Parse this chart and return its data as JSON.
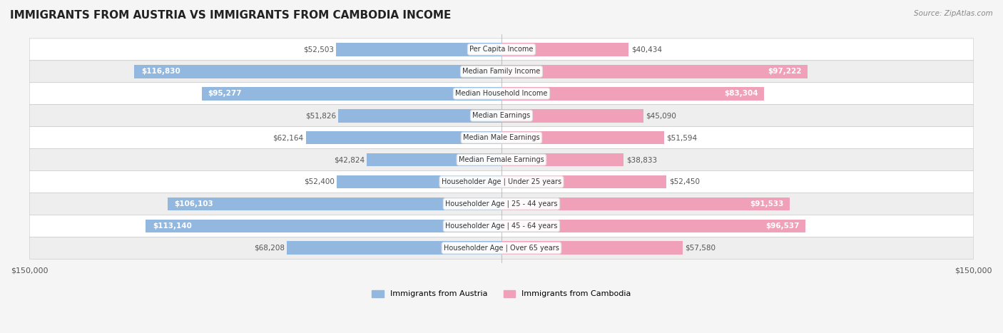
{
  "title": "IMMIGRANTS FROM AUSTRIA VS IMMIGRANTS FROM CAMBODIA INCOME",
  "source": "Source: ZipAtlas.com",
  "categories": [
    "Per Capita Income",
    "Median Family Income",
    "Median Household Income",
    "Median Earnings",
    "Median Male Earnings",
    "Median Female Earnings",
    "Householder Age | Under 25 years",
    "Householder Age | 25 - 44 years",
    "Householder Age | 45 - 64 years",
    "Householder Age | Over 65 years"
  ],
  "austria_values": [
    52503,
    116830,
    95277,
    51826,
    62164,
    42824,
    52400,
    106103,
    113140,
    68208
  ],
  "cambodia_values": [
    40434,
    97222,
    83304,
    45090,
    51594,
    38833,
    52450,
    91533,
    96537,
    57580
  ],
  "austria_labels": [
    "$52,503",
    "$116,830",
    "$95,277",
    "$51,826",
    "$62,164",
    "$42,824",
    "$52,400",
    "$106,103",
    "$113,140",
    "$68,208"
  ],
  "cambodia_labels": [
    "$40,434",
    "$97,222",
    "$83,304",
    "$45,090",
    "$51,594",
    "$38,833",
    "$52,450",
    "$91,533",
    "$96,537",
    "$57,580"
  ],
  "austria_color": "#93b8e0",
  "cambodia_color": "#f0a0b8",
  "austria_label_color_inside": "#ffffff",
  "austria_label_color_outside": "#555555",
  "cambodia_label_color_inside": "#ffffff",
  "cambodia_label_color_outside": "#555555",
  "max_value": 150000,
  "legend_austria": "Immigrants from Austria",
  "legend_cambodia": "Immigrants from Cambodia",
  "background_color": "#f5f5f5",
  "row_bg_even": "#ffffff",
  "row_bg_odd": "#eeeeee",
  "austria_inside_threshold": 80000,
  "cambodia_inside_threshold": 80000
}
